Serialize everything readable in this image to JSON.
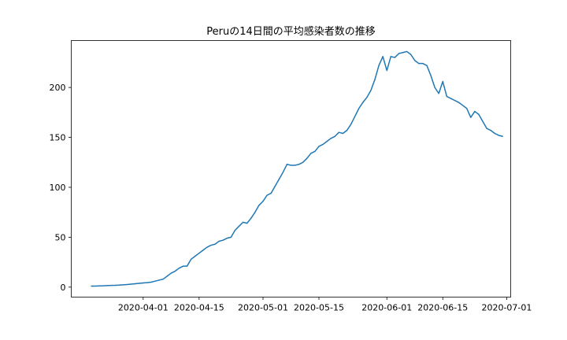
{
  "chart_data": {
    "type": "line",
    "title": "Peruの14日間の平均感染者数の推移",
    "xlabel": "",
    "ylabel": "",
    "xlim": [
      "2020-03-14",
      "2020-07-02"
    ],
    "ylim": [
      -10,
      247
    ],
    "grid": false,
    "x_ticks": [
      "2020-04-01",
      "2020-04-15",
      "2020-05-01",
      "2020-05-15",
      "2020-06-01",
      "2020-06-15",
      "2020-07-01"
    ],
    "y_ticks": [
      "0",
      "50",
      "100",
      "150",
      "200"
    ],
    "x": [
      "2020-03-19",
      "2020-03-20",
      "2020-03-21",
      "2020-03-22",
      "2020-03-23",
      "2020-03-24",
      "2020-03-25",
      "2020-03-26",
      "2020-03-27",
      "2020-03-28",
      "2020-03-29",
      "2020-03-30",
      "2020-03-31",
      "2020-04-01",
      "2020-04-02",
      "2020-04-03",
      "2020-04-04",
      "2020-04-05",
      "2020-04-06",
      "2020-04-07",
      "2020-04-08",
      "2020-04-09",
      "2020-04-10",
      "2020-04-11",
      "2020-04-12",
      "2020-04-13",
      "2020-04-14",
      "2020-04-15",
      "2020-04-16",
      "2020-04-17",
      "2020-04-18",
      "2020-04-19",
      "2020-04-20",
      "2020-04-21",
      "2020-04-22",
      "2020-04-23",
      "2020-04-24",
      "2020-04-25",
      "2020-04-26",
      "2020-04-27",
      "2020-04-28",
      "2020-04-29",
      "2020-04-30",
      "2020-05-01",
      "2020-05-02",
      "2020-05-03",
      "2020-05-04",
      "2020-05-05",
      "2020-05-06",
      "2020-05-07",
      "2020-05-08",
      "2020-05-09",
      "2020-05-10",
      "2020-05-11",
      "2020-05-12",
      "2020-05-13",
      "2020-05-14",
      "2020-05-15",
      "2020-05-16",
      "2020-05-17",
      "2020-05-18",
      "2020-05-19",
      "2020-05-20",
      "2020-05-21",
      "2020-05-22",
      "2020-05-23",
      "2020-05-24",
      "2020-05-25",
      "2020-05-26",
      "2020-05-27",
      "2020-05-28",
      "2020-05-29",
      "2020-05-30",
      "2020-05-31",
      "2020-06-01",
      "2020-06-02",
      "2020-06-03",
      "2020-06-04",
      "2020-06-05",
      "2020-06-06",
      "2020-06-07",
      "2020-06-08",
      "2020-06-09",
      "2020-06-10",
      "2020-06-11",
      "2020-06-12",
      "2020-06-13",
      "2020-06-14",
      "2020-06-15",
      "2020-06-16",
      "2020-06-17",
      "2020-06-18",
      "2020-06-19",
      "2020-06-20",
      "2020-06-21",
      "2020-06-22",
      "2020-06-23",
      "2020-06-24",
      "2020-06-25",
      "2020-06-26",
      "2020-06-27",
      "2020-06-28",
      "2020-06-29",
      "2020-06-30"
    ],
    "series": [
      {
        "values": [
          1,
          1,
          1.2,
          1.3,
          1.5,
          1.7,
          1.8,
          2,
          2.3,
          2.6,
          3,
          3.4,
          3.8,
          4.2,
          4.5,
          5,
          6,
          7,
          8,
          11,
          14,
          16,
          19,
          21,
          21,
          28,
          31,
          34,
          37,
          40,
          42,
          43,
          46,
          47,
          49,
          50,
          57,
          61,
          65,
          64,
          69,
          75,
          82,
          86,
          92,
          94,
          101,
          108,
          115,
          123,
          122,
          122,
          123,
          125,
          129,
          134,
          136,
          141,
          143,
          146,
          149,
          151,
          155,
          154,
          157,
          163,
          171,
          179,
          185,
          190,
          197,
          208,
          222,
          231,
          217,
          231,
          230,
          234,
          235,
          236,
          233,
          227,
          224,
          224,
          222,
          212,
          200,
          194,
          206,
          191,
          189,
          187,
          185,
          182,
          179,
          170,
          176,
          173,
          166,
          159,
          157,
          154,
          152,
          151
        ]
      }
    ]
  }
}
